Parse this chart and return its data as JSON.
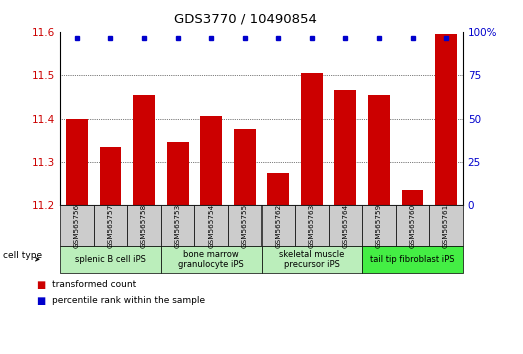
{
  "title": "GDS3770 / 10490854",
  "samples": [
    "GSM565756",
    "GSM565757",
    "GSM565758",
    "GSM565753",
    "GSM565754",
    "GSM565755",
    "GSM565762",
    "GSM565763",
    "GSM565764",
    "GSM565759",
    "GSM565760",
    "GSM565761"
  ],
  "transformed_count": [
    11.4,
    11.335,
    11.455,
    11.345,
    11.405,
    11.375,
    11.275,
    11.505,
    11.465,
    11.455,
    11.235,
    11.595
  ],
  "percentile_rank": [
    100,
    100,
    100,
    100,
    100,
    100,
    100,
    100,
    100,
    100,
    100,
    100
  ],
  "ylim": [
    11.2,
    11.6
  ],
  "y2lim": [
    0,
    100
  ],
  "yticks": [
    11.2,
    11.3,
    11.4,
    11.5,
    11.6
  ],
  "y2ticks": [
    0,
    25,
    50,
    75,
    100
  ],
  "bar_color": "#cc0000",
  "dot_color": "#0000cc",
  "cell_type_groups": [
    {
      "label": "splenic B cell iPS",
      "indices": [
        0,
        1,
        2
      ],
      "color": "#bbeebb"
    },
    {
      "label": "bone marrow\ngranulocyte iPS",
      "indices": [
        3,
        4,
        5
      ],
      "color": "#bbeebb"
    },
    {
      "label": "skeletal muscle\nprecursor iPS",
      "indices": [
        6,
        7,
        8
      ],
      "color": "#bbeebb"
    },
    {
      "label": "tail tip fibroblast iPS",
      "indices": [
        9,
        10,
        11
      ],
      "color": "#44ee44"
    }
  ],
  "tick_label_color_left": "#cc0000",
  "tick_label_color_right": "#0000cc",
  "bar_width": 0.65,
  "sample_box_color": "#cccccc",
  "legend_bar_label": "transformed count",
  "legend_dot_label": "percentile rank within the sample",
  "cell_type_label": "cell type"
}
